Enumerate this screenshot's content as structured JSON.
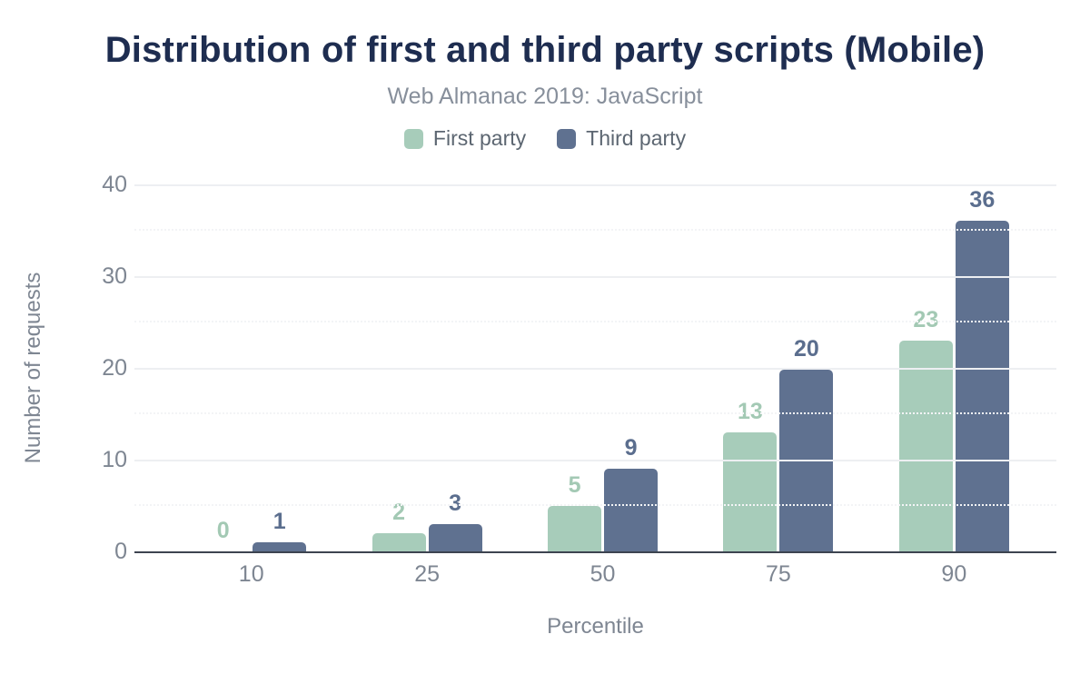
{
  "header": {
    "title": "Distribution of first and third party scripts (Mobile)",
    "subtitle": "Web Almanac 2019: JavaScript"
  },
  "colors": {
    "title_text": "#1e2d50",
    "subtitle_text": "#878f9b",
    "axis_text": "#7e8692",
    "legend_text": "#5c6671",
    "axis_line": "#3d4450",
    "gridline_major": "#edeff2",
    "gridline_minor": "#f3f4f6",
    "background": "#ffffff"
  },
  "chart_data": {
    "type": "bar",
    "title": "Distribution of first and third party scripts (Mobile)",
    "subtitle": "Web Almanac 2019: JavaScript",
    "categories": [
      "10",
      "25",
      "50",
      "75",
      "90"
    ],
    "xlabel": "Percentile",
    "ylabel": "Number of requests",
    "ylim": [
      0,
      40
    ],
    "yticks_major": [
      0,
      10,
      20,
      30,
      40
    ],
    "yticks_minor": [
      5,
      15,
      25,
      35
    ],
    "grid": true,
    "legend_position": "top",
    "series": [
      {
        "name": "First party",
        "color": "#a7ccba",
        "label_color": "#a3c9b4",
        "values": [
          0,
          2,
          5,
          13,
          23
        ]
      },
      {
        "name": "Third party",
        "color": "#5f7190",
        "label_color": "#5b6e8e",
        "values": [
          1,
          3,
          9,
          20,
          36
        ],
        "bar_render_values": [
          1,
          3,
          9,
          19.8,
          36
        ]
      }
    ]
  }
}
